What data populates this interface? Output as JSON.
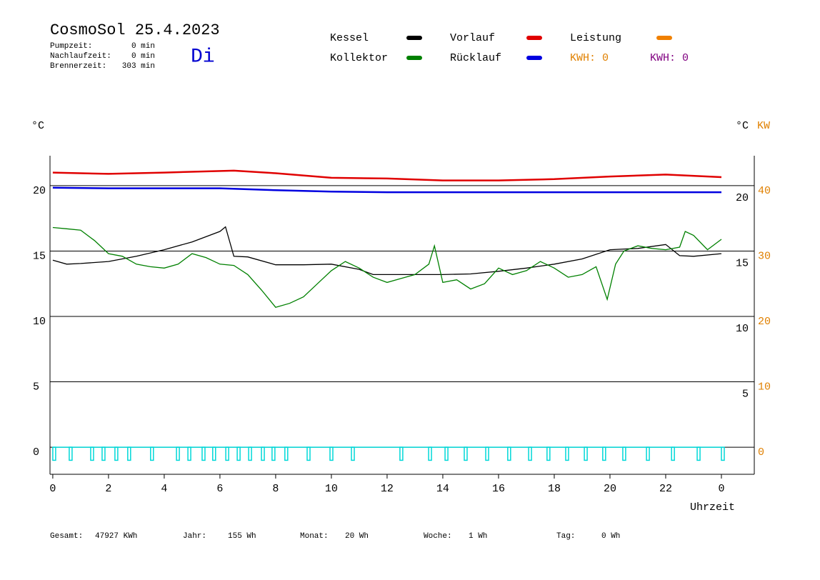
{
  "chart_data": {
    "type": "line",
    "title": "CosmoSol 25.4.2023",
    "weekday": "Di",
    "info": [
      {
        "label": "Pumpzeit:",
        "value": "0 min"
      },
      {
        "label": "Nachlaufzeit:",
        "value": "0 min"
      },
      {
        "label": "Brennerzeit:",
        "value": "303 min"
      }
    ],
    "y_axis_label": "°C",
    "y_right_axis_label": "°C",
    "y2_axis_label": "KW",
    "x_axis_label": "Uhrzeit",
    "xlim": [
      -0.1,
      25.18
    ],
    "xticks": [
      0,
      2,
      4,
      6,
      8,
      10,
      12,
      14,
      16,
      18,
      20,
      22,
      {
        "value": 24,
        "label": "0"
      }
    ],
    "ylim": [
      -2.07,
      22.29
    ],
    "yticks": [
      0,
      5,
      10,
      15,
      20
    ],
    "y_right_ticks": [
      5,
      10,
      15,
      20
    ],
    "y2lim": [
      -4.14,
      44.58
    ],
    "y2ticks": [
      0,
      10,
      20,
      30,
      40
    ],
    "y2color": "#e08000",
    "grid": true,
    "series": [
      {
        "name": "Kessel",
        "color": "#000000",
        "x": [
          0,
          0.5,
          1,
          2,
          3,
          4,
          5,
          6,
          6.2,
          6.5,
          7,
          8,
          9,
          10,
          11,
          11.5,
          12,
          13,
          14,
          15,
          16,
          17,
          18,
          19,
          20,
          21,
          22,
          22.5,
          23,
          24
        ],
        "values": [
          14.3,
          14.0,
          14.05,
          14.2,
          14.6,
          15.1,
          15.7,
          16.5,
          16.85,
          14.6,
          14.55,
          13.95,
          13.95,
          14.0,
          13.6,
          13.2,
          13.2,
          13.2,
          13.2,
          13.25,
          13.45,
          13.7,
          14.0,
          14.4,
          15.1,
          15.2,
          15.5,
          14.65,
          14.6,
          14.8
        ]
      },
      {
        "name": "Kollektor",
        "color": "#008000",
        "x": [
          0,
          0.5,
          1,
          1.5,
          2,
          2.5,
          3,
          3.5,
          4,
          4.5,
          5,
          5.5,
          6,
          6.5,
          7,
          7.5,
          8,
          8.5,
          9,
          9.5,
          10,
          10.5,
          11,
          11.5,
          12,
          12.5,
          13,
          13.5,
          13.7,
          14,
          14.5,
          15,
          15.5,
          16,
          16.5,
          17,
          17.5,
          18,
          18.5,
          19,
          19.5,
          19.9,
          20.2,
          20.5,
          21,
          21.5,
          22,
          22.5,
          22.7,
          23,
          23.5,
          24
        ],
        "values": [
          16.8,
          16.7,
          16.6,
          15.8,
          14.8,
          14.6,
          14.0,
          13.8,
          13.7,
          14.0,
          14.8,
          14.5,
          14.0,
          13.9,
          13.2,
          12.0,
          10.7,
          11.0,
          11.5,
          12.5,
          13.5,
          14.2,
          13.7,
          13.0,
          12.6,
          12.9,
          13.2,
          14.0,
          15.4,
          12.6,
          12.8,
          12.1,
          12.5,
          13.7,
          13.2,
          13.5,
          14.2,
          13.7,
          13.0,
          13.2,
          13.8,
          11.3,
          14.0,
          15.0,
          15.4,
          15.2,
          15.1,
          15.3,
          16.5,
          16.2,
          15.1,
          15.9
        ]
      },
      {
        "name": "Vorlauf",
        "color": "#e00000",
        "x": [
          0,
          2,
          4,
          6.5,
          8,
          10,
          12,
          14,
          16,
          18,
          20,
          22,
          24
        ],
        "values": [
          21.0,
          20.9,
          21.0,
          21.15,
          20.95,
          20.6,
          20.55,
          20.4,
          20.4,
          20.5,
          20.7,
          20.85,
          20.65
        ]
      },
      {
        "name": "Rücklauf",
        "color": "#0000e0",
        "x": [
          0,
          2,
          4,
          6,
          8,
          10,
          12,
          14,
          16,
          18,
          20,
          22,
          24
        ],
        "values": [
          19.85,
          19.8,
          19.8,
          19.8,
          19.65,
          19.55,
          19.5,
          19.5,
          19.5,
          19.5,
          19.5,
          19.5,
          19.5
        ]
      },
      {
        "name": "Leistung",
        "color": "#f08000",
        "x": [],
        "values": []
      }
    ],
    "pulses": {
      "color": "#00d8d8",
      "x": [
        0,
        0.59,
        1.36,
        1.77,
        2.23,
        2.69,
        3.51,
        4.44,
        4.85,
        5.36,
        5.74,
        6.21,
        6.62,
        7.03,
        7.49,
        7.87,
        8.33,
        9.13,
        9.95,
        10.72,
        12.46,
        13.49,
        14.08,
        14.77,
        15.54,
        16.33,
        17.08,
        17.74,
        18.41,
        19.08,
        19.74,
        20.46,
        21.31,
        22.21,
        23.13,
        24.0
      ],
      "values": [
        -1,
        -1,
        -1,
        -1,
        -1,
        -1,
        -1,
        -1,
        -1,
        -1,
        -1,
        -1,
        -1,
        -1,
        -1,
        -1,
        -1,
        -1,
        -1,
        -1,
        -1,
        -1,
        -1,
        -1,
        -1,
        -1,
        -1,
        -1,
        -1,
        -1,
        -1,
        -1,
        -1,
        -1,
        -1,
        -1
      ]
    },
    "kwh": [
      {
        "text": "KWH: 0",
        "color": "#e08000"
      },
      {
        "text": "KWH: 0",
        "color": "#800080"
      }
    ],
    "footer": [
      {
        "label": "Gesamt:",
        "value": "47927 KWh"
      },
      {
        "label": "Jahr:",
        "value": "155 Wh"
      },
      {
        "label": "Monat:",
        "value": "20 Wh"
      },
      {
        "label": "Woche:",
        "value": "1 Wh"
      },
      {
        "label": "Tag:",
        "value": "0 Wh"
      }
    ]
  }
}
